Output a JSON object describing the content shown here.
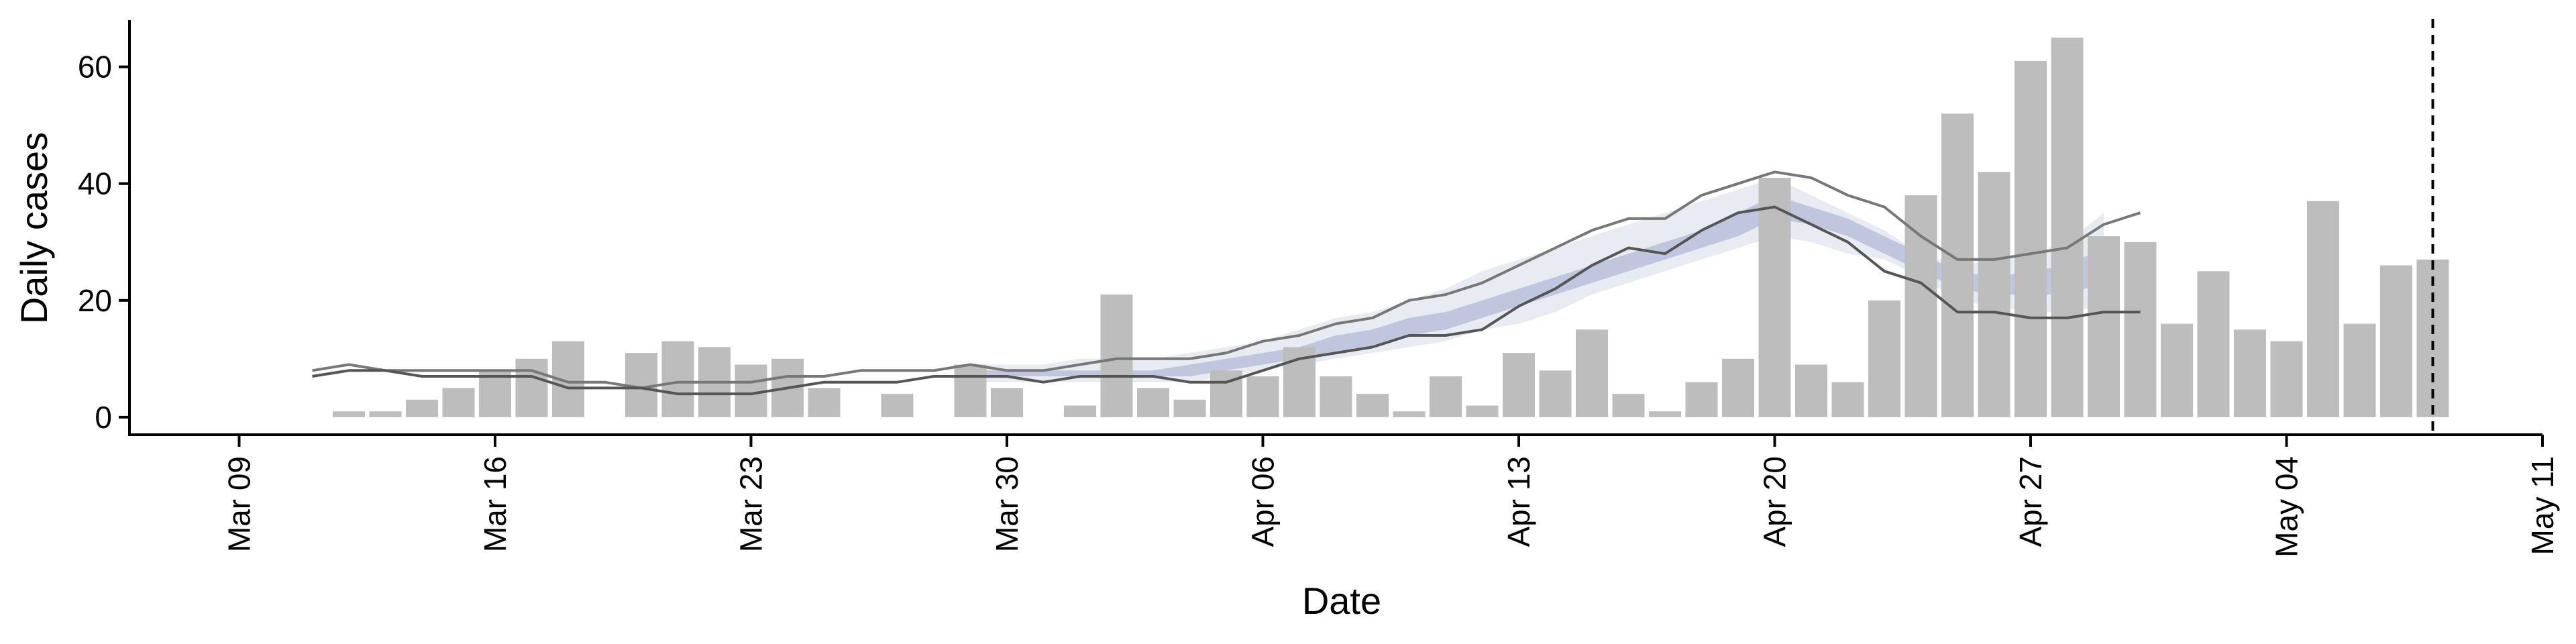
{
  "chart_data": {
    "type": "bar",
    "xlabel": "Date",
    "ylabel": "Daily cases",
    "ylim": [
      -3,
      68
    ],
    "xlim": [
      "2020-03-06",
      "2020-05-11"
    ],
    "grid": false,
    "legend": "none",
    "x_ticks": [
      {
        "date": "2020-03-09",
        "label": "Mar 09"
      },
      {
        "date": "2020-03-16",
        "label": "Mar 16"
      },
      {
        "date": "2020-03-23",
        "label": "Mar 23"
      },
      {
        "date": "2020-03-30",
        "label": "Mar 30"
      },
      {
        "date": "2020-04-06",
        "label": "Apr 06"
      },
      {
        "date": "2020-04-13",
        "label": "Apr 13"
      },
      {
        "date": "2020-04-20",
        "label": "Apr 20"
      },
      {
        "date": "2020-04-27",
        "label": "Apr 27"
      },
      {
        "date": "2020-05-04",
        "label": "May 04"
      },
      {
        "date": "2020-05-11",
        "label": "May 11"
      }
    ],
    "y_ticks": [
      0,
      20,
      40,
      60
    ],
    "bars": {
      "start_date": "2020-03-12",
      "values": [
        1,
        1,
        3,
        5,
        8,
        10,
        13,
        0,
        11,
        13,
        12,
        9,
        10,
        5,
        0,
        4,
        0,
        9,
        5,
        0,
        2,
        21,
        5,
        3,
        8,
        7,
        12,
        7,
        4,
        1,
        7,
        2,
        11,
        8,
        15,
        4,
        1,
        6,
        10,
        41,
        9,
        6,
        20,
        38,
        52,
        42,
        61,
        65,
        31,
        30,
        16,
        25,
        15,
        13,
        37,
        16,
        26,
        27
      ],
      "color": "#bdbdbd"
    },
    "upper_line": {
      "start_date": "2020-03-11",
      "values": [
        8,
        9,
        8,
        8,
        8,
        8,
        8,
        6,
        6,
        5,
        6,
        6,
        6,
        7,
        7,
        8,
        8,
        8,
        9,
        8,
        8,
        9,
        10,
        10,
        10,
        11,
        13,
        14,
        16,
        17,
        20,
        21,
        23,
        26,
        29,
        32,
        34,
        34,
        38,
        40,
        42,
        41,
        38,
        36,
        31,
        27,
        27,
        28,
        29,
        33,
        35
      ],
      "color": "#777777"
    },
    "lower_line": {
      "start_date": "2020-03-11",
      "values": [
        7,
        8,
        8,
        7,
        7,
        7,
        7,
        5,
        5,
        5,
        4,
        4,
        4,
        5,
        6,
        6,
        6,
        7,
        7,
        7,
        6,
        7,
        7,
        7,
        6,
        6,
        8,
        10,
        11,
        12,
        14,
        14,
        15,
        19,
        22,
        26,
        29,
        28,
        32,
        35,
        36,
        33,
        30,
        25,
        23,
        18,
        18,
        17,
        17,
        18,
        18
      ],
      "color": "#555555"
    },
    "band_outer": {
      "start_date": "2020-03-29",
      "upper": [
        9,
        9,
        9,
        10,
        10,
        10,
        11,
        12,
        13,
        15,
        17,
        18,
        20,
        22,
        25,
        27,
        29,
        31,
        33,
        35,
        37,
        39,
        41,
        38,
        35,
        32,
        28,
        26,
        27,
        28,
        30,
        35
      ],
      "lower": [
        6,
        6,
        6,
        6,
        6,
        6,
        6,
        7,
        8,
        9,
        10,
        11,
        12,
        13,
        15,
        16,
        18,
        21,
        23,
        25,
        27,
        29,
        31,
        30,
        28,
        27,
        24,
        20,
        19,
        18,
        18,
        19
      ],
      "color": "#dfe2ee"
    },
    "band_inner": {
      "start_date": "2020-03-29",
      "upper": [
        8,
        8,
        8,
        8,
        8,
        8,
        9,
        10,
        11,
        12,
        14,
        15,
        17,
        18,
        20,
        22,
        24,
        26,
        28,
        30,
        32,
        35,
        38,
        36,
        34,
        31,
        28,
        25,
        24,
        25,
        26,
        29
      ],
      "lower": [
        7,
        7,
        7,
        7,
        7,
        7,
        7,
        8,
        9,
        10,
        11,
        12,
        14,
        15,
        17,
        19,
        21,
        23,
        25,
        27,
        29,
        31,
        34,
        33,
        31,
        28,
        25,
        22,
        21,
        21,
        21,
        23
      ],
      "color": "#b8c0d9"
    },
    "vline_date": "2020-05-08"
  }
}
